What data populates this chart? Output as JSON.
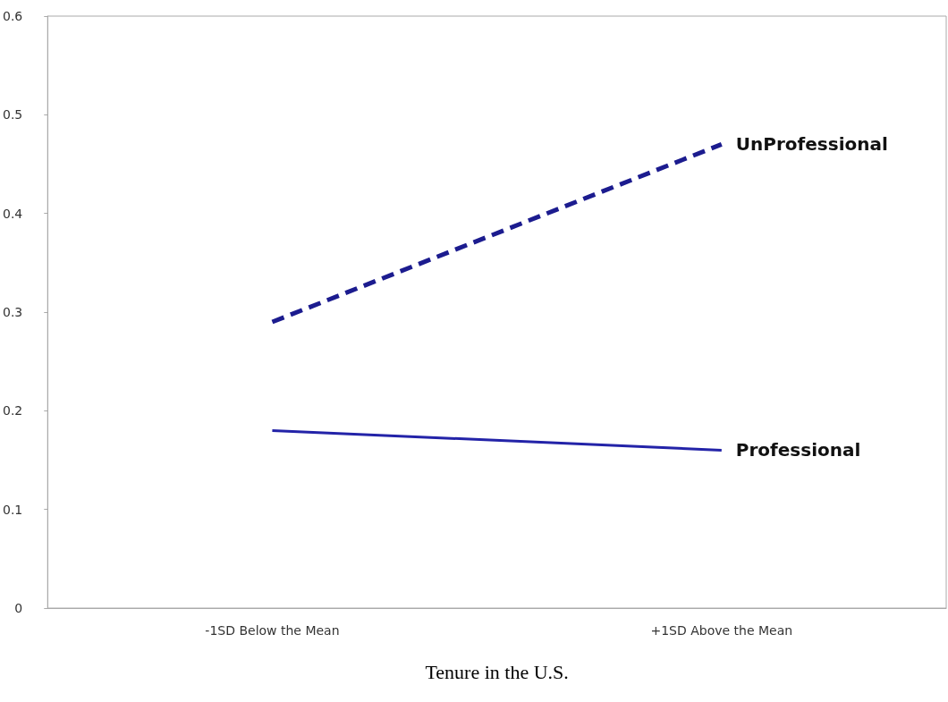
{
  "chart_data": {
    "type": "line",
    "xlabel": "Tenure in the U.S.",
    "categories": [
      "-1SD Below the Mean",
      "+1SD Above the Mean"
    ],
    "series": [
      {
        "name": "UnProfessional",
        "color": "#1c1c8f",
        "values": [
          0.29,
          0.47
        ],
        "line_style": "dashed"
      },
      {
        "name": "Professional",
        "color": "#2323a8",
        "values": [
          0.18,
          0.16
        ],
        "line_style": "solid"
      }
    ],
    "ylim": [
      0,
      0.6
    ],
    "yticks": [
      0,
      0.1,
      0.2,
      0.3,
      0.4,
      0.5,
      0.6
    ],
    "grid": false,
    "legend": false,
    "marker": "none"
  }
}
